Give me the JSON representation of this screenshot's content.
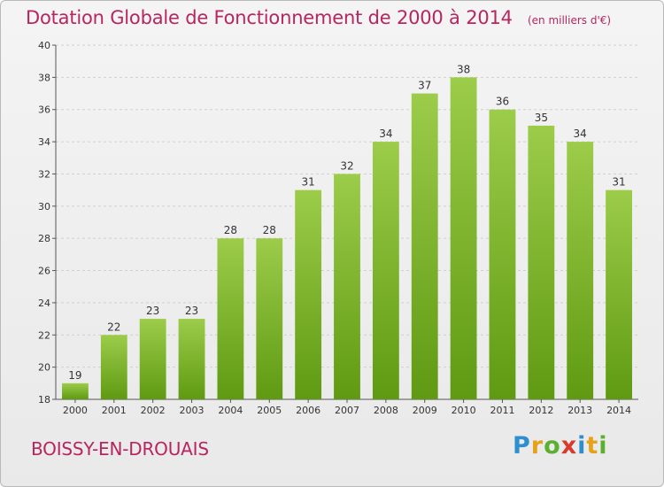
{
  "chart_data": {
    "type": "bar",
    "title": "Dotation Globale de Fonctionnement de 2000 à 2014",
    "unit_label": "(en milliers d'€)",
    "categories": [
      "2000",
      "2001",
      "2002",
      "2003",
      "2004",
      "2005",
      "2006",
      "2007",
      "2008",
      "2009",
      "2010",
      "2011",
      "2012",
      "2013",
      "2014"
    ],
    "values": [
      19,
      22,
      23,
      23,
      28,
      28,
      31,
      32,
      34,
      37,
      38,
      36,
      35,
      34,
      31
    ],
    "ylim": [
      18,
      40
    ],
    "yticks": [
      18,
      20,
      22,
      24,
      26,
      28,
      30,
      32,
      34,
      36,
      38,
      40
    ],
    "grid": true,
    "bar_color_top": "#9ccc4a",
    "bar_color_bottom": "#5f9a12"
  },
  "footer": {
    "commune": "BOISSY-EN-DROUAIS",
    "brand_letters": [
      {
        "char": "P",
        "color": "#2e8fd0"
      },
      {
        "char": "r",
        "color": "#e8a21a"
      },
      {
        "char": "o",
        "color": "#5bb030"
      },
      {
        "char": "x",
        "color": "#d93a2b"
      },
      {
        "char": "i",
        "color": "#2e8fd0"
      },
      {
        "char": "t",
        "color": "#e8a21a"
      },
      {
        "char": "i",
        "color": "#5bb030"
      }
    ]
  }
}
